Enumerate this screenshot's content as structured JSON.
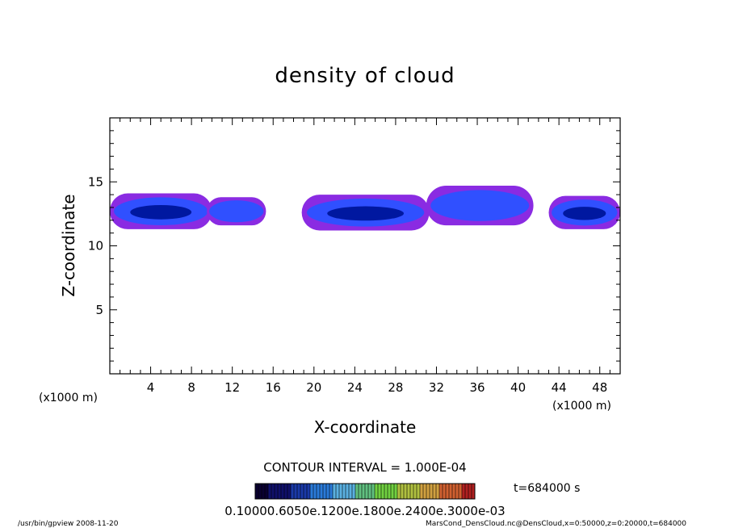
{
  "chart_data": {
    "type": "heatmap",
    "title": "density of cloud",
    "xlabel": "X-coordinate",
    "ylabel": "Z-coordinate",
    "x_unit": "(x1000 m)",
    "z_unit": "(x1000 m)",
    "xlim": [
      0,
      50
    ],
    "ylim": [
      0,
      20
    ],
    "x_ticks": [
      4,
      8,
      12,
      16,
      20,
      24,
      28,
      32,
      36,
      40,
      44,
      48
    ],
    "y_ticks": [
      5,
      10,
      15
    ],
    "grid": false,
    "contour_interval_text": "CONTOUR INTERVAL = 1.000E-04",
    "time_text": "t=684000 s",
    "colorbar_labels_text": "0.10000.6050e.1200e.1800e.2400e.3000e-03",
    "footer_left": "/usr/bin/gpview   2008-11-20",
    "footer_right": "MarsCond_DensCloud.nc@DensCloud,x=0:50000,z=0:20000,t=684000",
    "colors": {
      "low": "#8a2be2",
      "mid": "#3050ff",
      "high": "#0018a0",
      "colorbar": [
        "#0a0030",
        "#10106a",
        "#1a3aa8",
        "#2a7ad8",
        "#5ab0e0",
        "#60c080",
        "#70d040",
        "#b0c040",
        "#d0a040",
        "#d06030",
        "#b02020"
      ]
    },
    "cloud_patches": [
      {
        "x0": 0.0,
        "x1": 10.0,
        "z0": 11.3,
        "z1": 14.1,
        "level": 3
      },
      {
        "x0": 9.5,
        "x1": 15.3,
        "z0": 11.6,
        "z1": 13.8,
        "level": 2
      },
      {
        "x0": 18.8,
        "x1": 31.3,
        "z0": 11.2,
        "z1": 14.0,
        "level": 3
      },
      {
        "x0": 31.0,
        "x1": 41.5,
        "z0": 11.6,
        "z1": 14.7,
        "level": 2
      },
      {
        "x0": 43.0,
        "x1": 50.0,
        "z0": 11.3,
        "z1": 13.9,
        "level": 3
      }
    ]
  }
}
